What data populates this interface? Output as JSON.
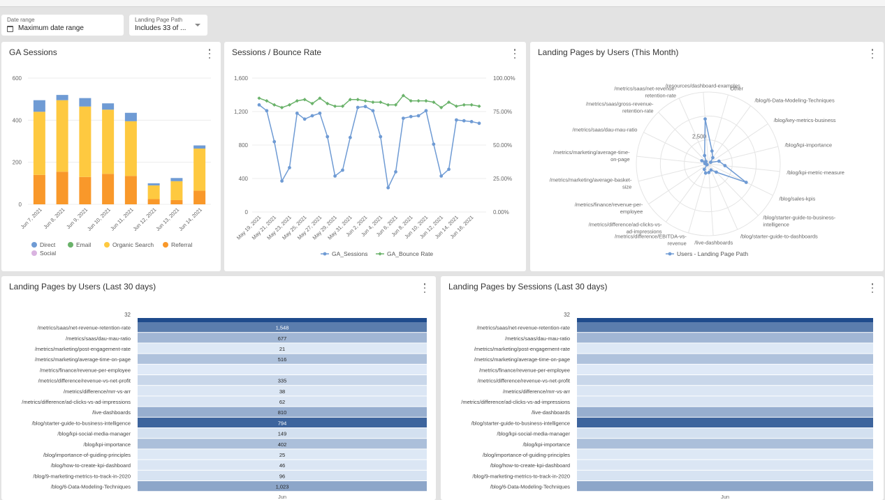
{
  "filters": {
    "date_range": {
      "label": "Date range",
      "value": "Maximum date range"
    },
    "landing_page": {
      "label": "Landing Page Path",
      "value": "Includes 33 of ..."
    }
  },
  "panels": {
    "ga_sessions": {
      "title": "GA Sessions"
    },
    "sessions_bounce": {
      "title": "Sessions / Bounce Rate"
    },
    "radar": {
      "title": "Landing Pages by Users (This Month)"
    },
    "users30": {
      "title": "Landing Pages by Users (Last 30 days)"
    },
    "sessions30": {
      "title": "Landing Pages by Sessions (Last 30 days)"
    }
  },
  "colors": {
    "direct": "#6f9bd4",
    "email": "#6ab26a",
    "organic_search": "#fec940",
    "referral": "#f9982a",
    "social": "#d9b3e0",
    "line_sessions": "#6f9bd4",
    "line_bounce": "#6ab26a",
    "radar": "#6f9bd4",
    "heat_low": "#e7f0fb",
    "heat_high": "#1f4b8c"
  },
  "chart_data": [
    {
      "id": "ga_sessions",
      "type": "bar",
      "stacked": true,
      "categories": [
        "Jun 7, 2021",
        "Jun 8, 2021",
        "Jun 9, 2021",
        "Jun 10, 2021",
        "Jun 11, 2021",
        "Jun 12, 2021",
        "Jun 13, 2021",
        "Jun 14, 2021"
      ],
      "series": [
        {
          "name": "Referral",
          "values": [
            140,
            155,
            130,
            145,
            135,
            25,
            20,
            65
          ]
        },
        {
          "name": "Organic Search",
          "values": [
            300,
            340,
            335,
            305,
            260,
            65,
            90,
            200
          ]
        },
        {
          "name": "Email",
          "values": [
            0,
            0,
            0,
            0,
            0,
            0,
            0,
            0
          ]
        },
        {
          "name": "Direct",
          "values": [
            55,
            25,
            40,
            30,
            40,
            10,
            15,
            15
          ]
        },
        {
          "name": "Social",
          "values": [
            0,
            0,
            0,
            0,
            0,
            0,
            0,
            0
          ]
        }
      ],
      "ylim": [
        0,
        600
      ],
      "yticks": [
        "0",
        "200",
        "400",
        "600"
      ],
      "legend": [
        "Direct",
        "Email",
        "Organic Search",
        "Referral",
        "Social"
      ],
      "legend_placement": "bottom"
    },
    {
      "id": "sessions_bounce",
      "type": "line",
      "x_tick_labels": [
        "May 19, 2021",
        "May 21, 2021",
        "May 23, 2021",
        "May 25, 2021",
        "May 27, 2021",
        "May 29, 2021",
        "May 31, 2021",
        "Jun 2, 2021",
        "Jun 4, 2021",
        "Jun 6, 2021",
        "Jun 8, 2021",
        "Jun 10, 2021",
        "Jun 12, 2021",
        "Jun 14, 2021",
        "Jun 16, 2021"
      ],
      "series": [
        {
          "name": "GA_Sessions",
          "axis": "left",
          "values": [
            1280,
            1210,
            840,
            370,
            530,
            1180,
            1110,
            1150,
            1180,
            900,
            430,
            500,
            890,
            1250,
            1260,
            1210,
            900,
            290,
            480,
            1120,
            1140,
            1150,
            1210,
            810,
            430,
            510,
            1100,
            1090,
            1080,
            1060
          ]
        },
        {
          "name": "GA_Bounce Rate",
          "axis": "right",
          "values": [
            85,
            83,
            80,
            78,
            80,
            83,
            84,
            81,
            85,
            81,
            79,
            79,
            84,
            84,
            83,
            82,
            82,
            80,
            80,
            87,
            83,
            83,
            83,
            82,
            78,
            82,
            79,
            80,
            80,
            79
          ]
        }
      ],
      "ylim_left": [
        0,
        1600
      ],
      "ylim_right": [
        0,
        100
      ],
      "yticks_left": [
        "0",
        "400",
        "800",
        "1,200",
        "1,600"
      ],
      "yticks_right": [
        "0.00%",
        "25.00%",
        "50.00%",
        "75.00%",
        "100.00%"
      ],
      "legend": [
        "GA_Sessions",
        "GA_Bounce Rate"
      ],
      "legend_placement": "bottom"
    },
    {
      "id": "radar_users",
      "type": "radar",
      "categories": [
        "Other",
        "/blog/6-Data-Modeling-Techniques",
        "/blog/key-metrics-business",
        "/blog/kpi-importance",
        "/blog/kpi-metric-measure",
        "/blog/sales-kpis",
        "/blog/starter-guide-to-business-intelligence",
        "/blog/starter-guide-to-dashboards",
        "/live-dashboards",
        "/metrics/difference/EBITDA-vs-revenue",
        "/metrics/difference/ad-clicks-vs-ad-impressions",
        "/metrics/finance/revenue-per-employee",
        "/metrics/marketing/average-basket-size",
        "/metrics/marketing/average-time-on-page",
        "/metrics/saas/dau-mau-ratio",
        "/metrics/saas/gross-revenue-retention-rate",
        "/metrics/saas/net-revenue-retention-rate",
        "/resources/dashboard-examples"
      ],
      "values": [
        1400,
        800,
        300,
        1150,
        1750,
        4400,
        1200,
        700,
        900,
        1000,
        700,
        150,
        200,
        350,
        750,
        350,
        950,
        4700
      ],
      "rmax": 7500,
      "tick_label": "2,500",
      "series_name": "Users - Landing Page Path",
      "legend_placement": "bottom"
    },
    {
      "id": "users30",
      "type": "heatmap",
      "column": "Jun",
      "header_value": "32",
      "rows": [
        {
          "label": "/metrics/saas/net-revenue-retention-rate",
          "value": "1,548",
          "shade": 0.7
        },
        {
          "label": "/metrics/saas/dau-mau-ratio",
          "value": "677",
          "shade": 0.35
        },
        {
          "label": "/metrics/marketing/post-engagement-rate",
          "value": "21",
          "shade": 0.05
        },
        {
          "label": "/metrics/marketing/average-time-on-page",
          "value": "516",
          "shade": 0.28
        },
        {
          "label": "/metrics/finance/revenue-per-employee",
          "value": "",
          "shade": 0.04
        },
        {
          "label": "/metrics/difference/revenue-vs-net-profit",
          "value": "335",
          "shade": 0.15
        },
        {
          "label": "/metrics/difference/mrr-vs-arr",
          "value": "38",
          "shade": 0.06
        },
        {
          "label": "/metrics/difference/ad-clicks-vs-ad-impressions",
          "value": "62",
          "shade": 0.07
        },
        {
          "label": "/live-dashboards",
          "value": "810",
          "shade": 0.4
        },
        {
          "label": "/blog/starter-guide-to-business-intelligence",
          "value": "794",
          "shade": 0.85
        },
        {
          "label": "/blog/kpi-social-media-manager",
          "value": "149",
          "shade": 0.1
        },
        {
          "label": "/blog/kpi-importance",
          "value": "402",
          "shade": 0.3
        },
        {
          "label": "/blog/importance-of-guiding-principles",
          "value": "25",
          "shade": 0.05
        },
        {
          "label": "/blog/how-to-create-kpi-dashboard",
          "value": "46",
          "shade": 0.06
        },
        {
          "label": "/blog/9-marketing-metrics-to-track-in-2020",
          "value": "96",
          "shade": 0.08
        },
        {
          "label": "/blog/6-Data-Modeling-Techniques",
          "value": "1,023",
          "shade": 0.45
        }
      ]
    },
    {
      "id": "sessions30",
      "type": "heatmap",
      "column": "Jun",
      "header_value": "32",
      "rows": [
        {
          "label": "/metrics/saas/net-revenue-retention-rate",
          "value": "",
          "shade": 0.7
        },
        {
          "label": "/metrics/saas/dau-mau-ratio",
          "value": "",
          "shade": 0.35
        },
        {
          "label": "/metrics/marketing/post-engagement-rate",
          "value": "",
          "shade": 0.05
        },
        {
          "label": "/metrics/marketing/average-time-on-page",
          "value": "",
          "shade": 0.28
        },
        {
          "label": "/metrics/finance/revenue-per-employee",
          "value": "",
          "shade": 0.04
        },
        {
          "label": "/metrics/difference/revenue-vs-net-profit",
          "value": "",
          "shade": 0.15
        },
        {
          "label": "/metrics/difference/mrr-vs-arr",
          "value": "",
          "shade": 0.06
        },
        {
          "label": "/metrics/difference/ad-clicks-vs-ad-impressions",
          "value": "",
          "shade": 0.07
        },
        {
          "label": "/live-dashboards",
          "value": "",
          "shade": 0.4
        },
        {
          "label": "/blog/starter-guide-to-business-intelligence",
          "value": "",
          "shade": 0.85
        },
        {
          "label": "/blog/kpi-social-media-manager",
          "value": "",
          "shade": 0.1
        },
        {
          "label": "/blog/kpi-importance",
          "value": "",
          "shade": 0.3
        },
        {
          "label": "/blog/importance-of-guiding-principles",
          "value": "",
          "shade": 0.05
        },
        {
          "label": "/blog/how-to-create-kpi-dashboard",
          "value": "",
          "shade": 0.06
        },
        {
          "label": "/blog/9-marketing-metrics-to-track-in-2020",
          "value": "",
          "shade": 0.08
        },
        {
          "label": "/blog/6-Data-Modeling-Techniques",
          "value": "",
          "shade": 0.45
        }
      ]
    }
  ]
}
